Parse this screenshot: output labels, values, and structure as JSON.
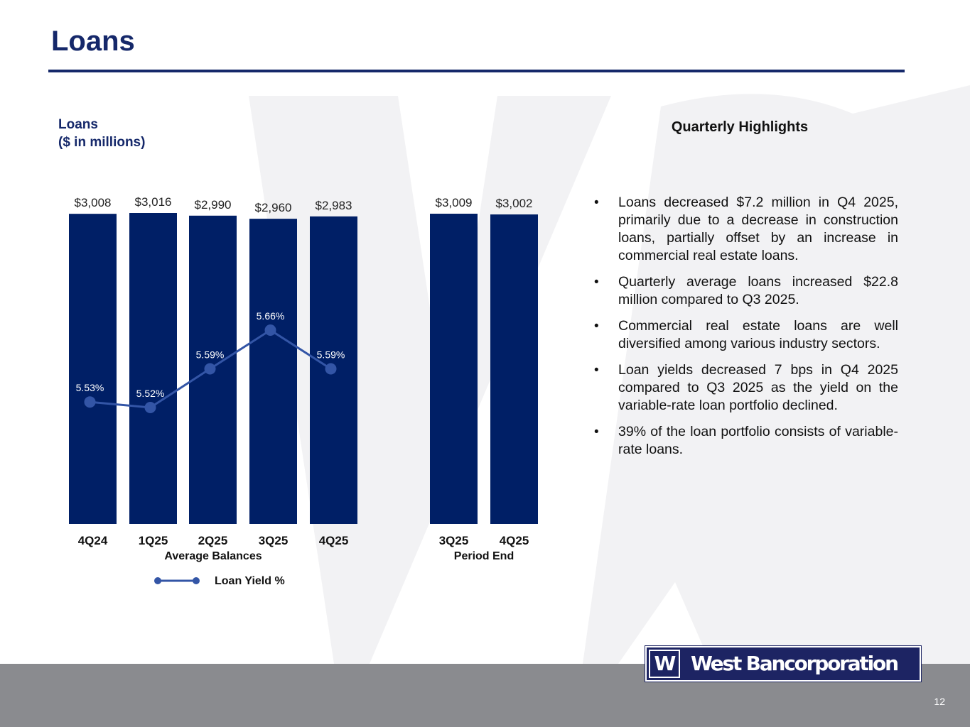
{
  "page_title": "Loans",
  "chart_title_lines": [
    "Loans",
    "($ in millions)"
  ],
  "highlights": {
    "title": "Quarterly Highlights",
    "bullet_symbol": "•",
    "items": [
      "Loans decreased $7.2 million in Q4 2025, primarily due to a decrease in construction loans, partially offset by an increase in commercial real estate loans.",
      "Quarterly average loans increased $22.8 million compared to Q3 2025.",
      "Commercial real estate loans are well diversified among various industry sectors.",
      "Loan yields decreased 7 bps in Q4 2025 compared to Q3 2025 as the yield on the variable-rate loan portfolio declined.",
      "39% of the loan portfolio consists of variable-rate loans."
    ]
  },
  "chart_data": {
    "type": "bar",
    "ylabel": "Loans ($ in millions)",
    "groups": [
      {
        "name": "Average Balances",
        "categories": [
          "4Q24",
          "1Q25",
          "2Q25",
          "3Q25",
          "4Q25"
        ],
        "values": [
          3008,
          3016,
          2990,
          2960,
          2983
        ],
        "value_labels": [
          "$3,008",
          "$3,016",
          "$2,990",
          "$2,960",
          "$2,983"
        ]
      },
      {
        "name": "Period End",
        "categories": [
          "3Q25",
          "4Q25"
        ],
        "values": [
          3009,
          3002
        ],
        "value_labels": [
          "$3,009",
          "$3,002"
        ]
      }
    ],
    "line_series": {
      "name": "Loan Yield %",
      "type": "line",
      "categories": [
        "4Q24",
        "1Q25",
        "2Q25",
        "3Q25",
        "4Q25"
      ],
      "values": [
        5.53,
        5.52,
        5.59,
        5.66,
        5.59
      ],
      "value_labels": [
        "5.53%",
        "5.52%",
        "5.59%",
        "5.66%",
        "5.59%"
      ]
    },
    "bar_color": "#001f66",
    "line_color": "#3355a6",
    "legend": "bottom"
  },
  "logo": {
    "mark": "W",
    "name": "West Bancorporation"
  },
  "page_number": "12",
  "colors": {
    "navy": "#15286a",
    "bar": "#001f66",
    "line": "#3355a6",
    "footer": "#8a8b8f"
  }
}
